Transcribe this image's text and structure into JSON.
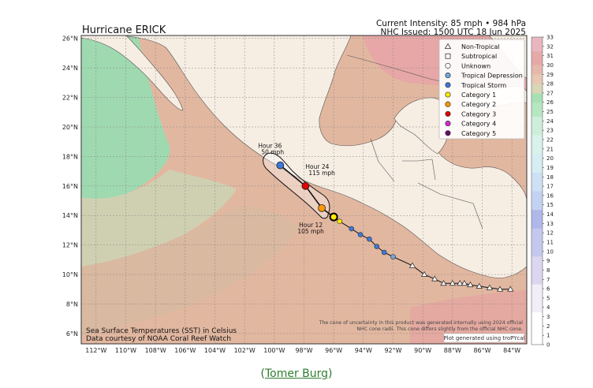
{
  "title": "Hurricane ERICK",
  "intensity_line": "Current Intensity: 85 mph • 984 hPa",
  "issued_line": "NHC Issued: 1500 UTC 18 Jun 2025",
  "lon_labels": [
    "112°W",
    "110°W",
    "108°W",
    "106°W",
    "104°W",
    "102°W",
    "100°W",
    "98°W",
    "96°W",
    "94°W",
    "92°W",
    "90°W",
    "88°W",
    "86°W",
    "84°W"
  ],
  "lat_labels": [
    "6°N",
    "8°N",
    "10°N",
    "12°N",
    "14°N",
    "16°N",
    "18°N",
    "20°N",
    "22°N",
    "24°N",
    "26°N"
  ],
  "legend": [
    {
      "label": "Non-Tropical",
      "marker": "triangle",
      "color": "#ffffff"
    },
    {
      "label": "Subtropical",
      "marker": "square",
      "color": "#ffffff"
    },
    {
      "label": "Unknown",
      "marker": "circle",
      "color": "#ffffff"
    },
    {
      "label": "Tropical Depression",
      "marker": "circle",
      "color": "#6fa8dc"
    },
    {
      "label": "Tropical Storm",
      "marker": "circle",
      "color": "#3c78d8"
    },
    {
      "label": "Category 1",
      "marker": "circle",
      "color": "#ffeb00"
    },
    {
      "label": "Category 2",
      "marker": "circle",
      "color": "#ff9800"
    },
    {
      "label": "Category 3",
      "marker": "circle",
      "color": "#e00000"
    },
    {
      "label": "Category 4",
      "marker": "circle",
      "color": "#d62ad0"
    },
    {
      "label": "Category 5",
      "marker": "circle",
      "color": "#6a0a6a"
    }
  ],
  "forecast_labels": [
    {
      "hour": "Hour 36",
      "wind": "50 mph",
      "lon": -99.6,
      "lat": 17.4,
      "color": "#3c78d8"
    },
    {
      "hour": "Hour 24",
      "wind": "115 mph",
      "lon": -97.9,
      "lat": 16.0,
      "color": "#e00000"
    },
    {
      "hour": "Hour 12",
      "wind": "105 mph",
      "lon": -96.8,
      "lat": 14.5,
      "color": "#ff9800"
    }
  ],
  "current_position": {
    "lon": -96.0,
    "lat": 13.9,
    "color": "#ffeb00"
  },
  "past_track": [
    {
      "lon": -96.0,
      "lat": 13.9,
      "type": "cat1"
    },
    {
      "lon": -95.6,
      "lat": 13.6,
      "type": "cat1"
    },
    {
      "lon": -94.8,
      "lat": 13.1,
      "type": "ts"
    },
    {
      "lon": -94.2,
      "lat": 12.7,
      "type": "ts"
    },
    {
      "lon": -93.6,
      "lat": 12.4,
      "type": "ts"
    },
    {
      "lon": -93.1,
      "lat": 11.9,
      "type": "ts"
    },
    {
      "lon": -92.6,
      "lat": 11.5,
      "type": "ts"
    },
    {
      "lon": -92.0,
      "lat": 11.2,
      "type": "td"
    },
    {
      "lon": -90.7,
      "lat": 10.6,
      "type": "nt"
    },
    {
      "lon": -89.9,
      "lat": 10.0,
      "type": "nt"
    },
    {
      "lon": -89.2,
      "lat": 9.7,
      "type": "nt"
    },
    {
      "lon": -88.6,
      "lat": 9.4,
      "type": "nt"
    },
    {
      "lon": -88.0,
      "lat": 9.4,
      "type": "nt"
    },
    {
      "lon": -87.5,
      "lat": 9.4,
      "type": "nt"
    },
    {
      "lon": -87.2,
      "lat": 9.4,
      "type": "nt"
    },
    {
      "lon": -86.8,
      "lat": 9.3,
      "type": "nt"
    },
    {
      "lon": -86.2,
      "lat": 9.2,
      "type": "nt"
    },
    {
      "lon": -85.5,
      "lat": 9.1,
      "type": "nt"
    },
    {
      "lon": -84.8,
      "lat": 9.0,
      "type": "nt"
    },
    {
      "lon": -84.1,
      "lat": 9.0,
      "type": "nt"
    }
  ],
  "sst_caption_1": "Sea Surface Temperatures (SST) in Celsius",
  "sst_caption_2": "Data courtesy of NOAA Coral Reef Watch",
  "disclaimer_1": "The cone of uncertainty in this product was generated internally using 2024 official",
  "disclaimer_2": "NHC cone radii. This cone differs slightly from the official NHC cone.",
  "credit": "Plot generated using troPYcal",
  "colorbar_ticks": [
    "0",
    "1",
    "2",
    "3",
    "4",
    "5",
    "6",
    "7",
    "8",
    "9",
    "10",
    "11",
    "12",
    "13",
    "14",
    "15",
    "16",
    "17",
    "18",
    "19",
    "20",
    "21",
    "22",
    "23",
    "24",
    "25",
    "26",
    "27",
    "28",
    "29",
    "30",
    "31",
    "32",
    "33"
  ],
  "caption_open": "(",
  "caption_link": "Tomer Burg",
  "caption_close": ")"
}
